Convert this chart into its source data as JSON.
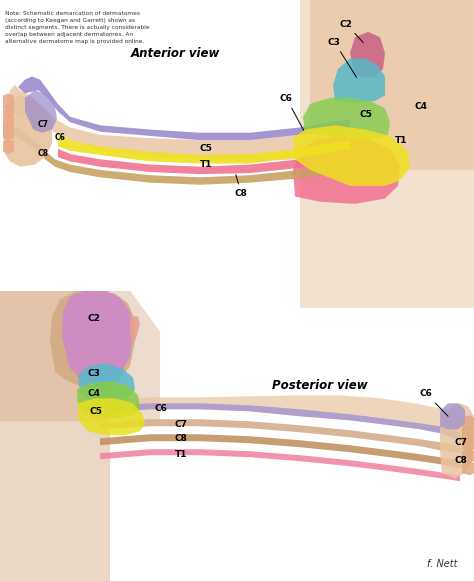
{
  "note_text": "Note: Schematic demarcation of dermatomes\n(according to Keegan and Garrett) shown as\ndistinct segments. There is actually considerable\noverlap between adjacent dermatomes. An\nalternative dermatome map is provided online.",
  "anterior_view_label": "Anterior view",
  "posterior_view_label": "Posterior view",
  "background_color": "#f5f0eb",
  "signature": "f. Nett",
  "fig_width": 4.74,
  "fig_height": 5.81,
  "dpi": 100,
  "colors": {
    "skin": "#e8c4a0",
    "skin_dark": "#c8966a",
    "skin_back": "#d4a882",
    "c2_ant": "#cc6688",
    "c3_ant": "#55b8c8",
    "c4_ant": "#88cc55",
    "c5_ant": "#f0e020",
    "t1_ant": "#f07090",
    "c6_ant": "#9988cc",
    "c8_ant": "#c8a060",
    "c2_post": "#cc88cc",
    "c3_post": "#55b8d0",
    "c4_post": "#88cc44",
    "c5_post": "#e8e020",
    "c6_post": "#a898cc",
    "c7_post": "#d4aa88",
    "c8_post": "#c09060",
    "t1_post": "#f080a0"
  }
}
